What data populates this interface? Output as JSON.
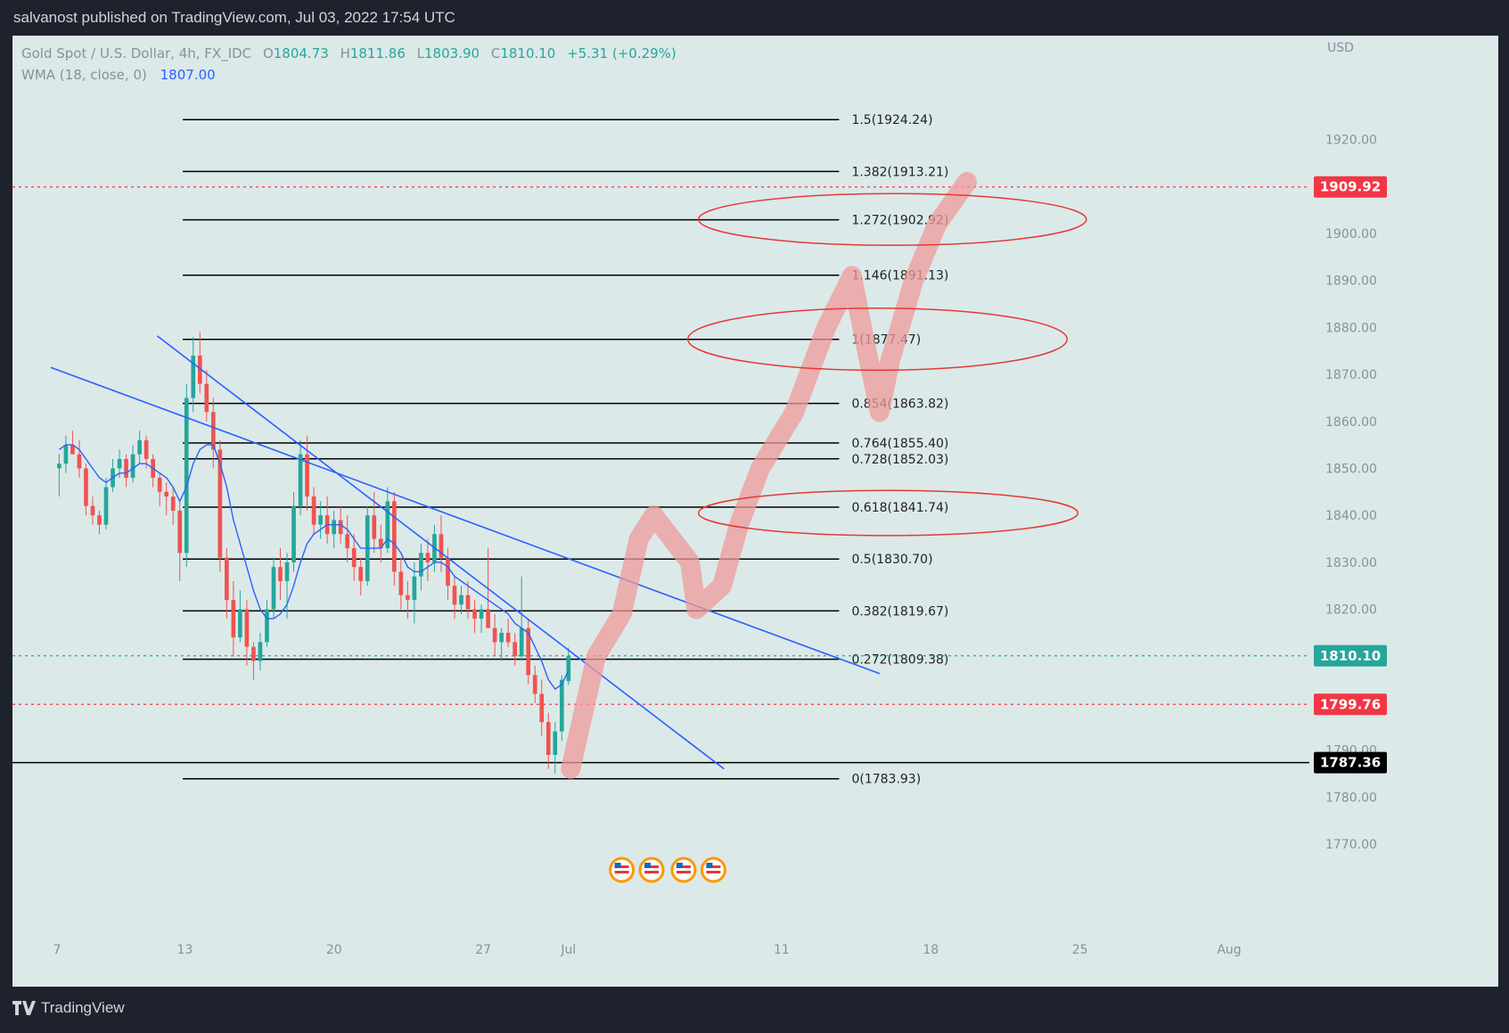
{
  "header": {
    "published": "salvanost published on TradingView.com, Jul 03, 2022 17:54 UTC"
  },
  "legend": {
    "symbol": "Gold Spot / U.S. Dollar, 4h, FX_IDC",
    "open_label": "O",
    "open": "1804.73",
    "high_label": "H",
    "high": "1811.86",
    "low_label": "L",
    "low": "1803.90",
    "close_label": "C",
    "close": "1810.10",
    "change": "+5.31 (+0.29%)",
    "wma_label": "WMA (18, close, 0)",
    "wma_value": "1807.00"
  },
  "footer": {
    "brand": "TradingView"
  },
  "colors": {
    "up": "#26a69a",
    "down": "#ef5350",
    "wma": "#2962ff",
    "trend": "#2962ff",
    "annotation": "#e53935",
    "projection": "#ef9a9a"
  },
  "chart_data": {
    "type": "candlestick",
    "currency": "USD",
    "ylim": [
      1763,
      1937
    ],
    "y_ticks": [
      "1920.00",
      "1910.00",
      "1900.00",
      "1890.00",
      "1880.00",
      "1870.00",
      "1860.00",
      "1850.00",
      "1840.00",
      "1830.00",
      "1820.00",
      "1810.00",
      "1800.00",
      "1790.00",
      "1780.00",
      "1770.00"
    ],
    "x_ticks": [
      {
        "label": "7",
        "day": 7
      },
      {
        "label": "13",
        "day": 13
      },
      {
        "label": "20",
        "day": 20
      },
      {
        "label": "27",
        "day": 27
      },
      {
        "label": "Jul",
        "day": 31
      },
      {
        "label": "11",
        "day": 41
      },
      {
        "label": "18",
        "day": 48
      },
      {
        "label": "25",
        "day": 55
      },
      {
        "label": "Aug",
        "day": 62
      }
    ],
    "fib_levels": [
      {
        "label": "1.5(1924.24)",
        "price": 1924.24
      },
      {
        "label": "1.382(1913.21)",
        "price": 1913.21
      },
      {
        "label": "1.272(1902.92)",
        "price": 1902.92
      },
      {
        "label": "1.146(1891.13)",
        "price": 1891.13
      },
      {
        "label": "1(1877.47)",
        "price": 1877.47
      },
      {
        "label": "0.854(1863.82)",
        "price": 1863.82
      },
      {
        "label": "0.764(1855.40)",
        "price": 1855.4
      },
      {
        "label": "0.728(1852.03)",
        "price": 1852.03
      },
      {
        "label": "0.618(1841.74)",
        "price": 1841.74
      },
      {
        "label": "0.5(1830.70)",
        "price": 1830.7
      },
      {
        "label": "0.382(1819.67)",
        "price": 1819.67
      },
      {
        "label": "0.272(1809.38)",
        "price": 1809.38
      },
      {
        "label": "0(1783.93)",
        "price": 1783.93
      }
    ],
    "price_tags": [
      {
        "label": "1909.92",
        "price": 1909.92,
        "bg": "#f23645",
        "style": "dotted-red"
      },
      {
        "label": "1810.10",
        "price": 1810.1,
        "bg": "#26a69a",
        "style": "dotted-teal"
      },
      {
        "label": "1799.76",
        "price": 1799.76,
        "bg": "#f23645",
        "style": "dotted-red"
      },
      {
        "label": "1787.36",
        "price": 1787.36,
        "bg": "#000000",
        "style": "solid-black"
      }
    ],
    "candles": [
      {
        "o": 1850,
        "h": 1853,
        "l": 1844,
        "c": 1851
      },
      {
        "o": 1851,
        "h": 1857,
        "l": 1849,
        "c": 1855
      },
      {
        "o": 1855,
        "h": 1858,
        "l": 1853,
        "c": 1853
      },
      {
        "o": 1853,
        "h": 1856,
        "l": 1848,
        "c": 1850
      },
      {
        "o": 1850,
        "h": 1851,
        "l": 1840,
        "c": 1842
      },
      {
        "o": 1842,
        "h": 1844,
        "l": 1838,
        "c": 1840
      },
      {
        "o": 1840,
        "h": 1841,
        "l": 1836,
        "c": 1838
      },
      {
        "o": 1838,
        "h": 1848,
        "l": 1837,
        "c": 1846
      },
      {
        "o": 1846,
        "h": 1852,
        "l": 1845,
        "c": 1850
      },
      {
        "o": 1850,
        "h": 1854,
        "l": 1848,
        "c": 1852
      },
      {
        "o": 1852,
        "h": 1853,
        "l": 1846,
        "c": 1848
      },
      {
        "o": 1848,
        "h": 1855,
        "l": 1847,
        "c": 1853
      },
      {
        "o": 1853,
        "h": 1858,
        "l": 1851,
        "c": 1856
      },
      {
        "o": 1856,
        "h": 1857,
        "l": 1850,
        "c": 1852
      },
      {
        "o": 1852,
        "h": 1853,
        "l": 1846,
        "c": 1848
      },
      {
        "o": 1848,
        "h": 1849,
        "l": 1842,
        "c": 1845
      },
      {
        "o": 1845,
        "h": 1847,
        "l": 1840,
        "c": 1844
      },
      {
        "o": 1844,
        "h": 1846,
        "l": 1838,
        "c": 1841
      },
      {
        "o": 1841,
        "h": 1843,
        "l": 1826,
        "c": 1832
      },
      {
        "o": 1832,
        "h": 1868,
        "l": 1829,
        "c": 1865
      },
      {
        "o": 1865,
        "h": 1878,
        "l": 1862,
        "c": 1874
      },
      {
        "o": 1874,
        "h": 1879,
        "l": 1866,
        "c": 1868
      },
      {
        "o": 1868,
        "h": 1871,
        "l": 1860,
        "c": 1862
      },
      {
        "o": 1862,
        "h": 1865,
        "l": 1850,
        "c": 1854
      },
      {
        "o": 1854,
        "h": 1856,
        "l": 1828,
        "c": 1831
      },
      {
        "o": 1831,
        "h": 1833,
        "l": 1818,
        "c": 1822
      },
      {
        "o": 1822,
        "h": 1826,
        "l": 1810,
        "c": 1814
      },
      {
        "o": 1814,
        "h": 1824,
        "l": 1813,
        "c": 1820
      },
      {
        "o": 1820,
        "h": 1822,
        "l": 1808,
        "c": 1812
      },
      {
        "o": 1812,
        "h": 1813,
        "l": 1805,
        "c": 1809
      },
      {
        "o": 1809,
        "h": 1815,
        "l": 1807,
        "c": 1813
      },
      {
        "o": 1813,
        "h": 1822,
        "l": 1812,
        "c": 1820
      },
      {
        "o": 1820,
        "h": 1831,
        "l": 1818,
        "c": 1829
      },
      {
        "o": 1829,
        "h": 1833,
        "l": 1822,
        "c": 1826
      },
      {
        "o": 1826,
        "h": 1832,
        "l": 1818,
        "c": 1830
      },
      {
        "o": 1830,
        "h": 1845,
        "l": 1828,
        "c": 1842
      },
      {
        "o": 1842,
        "h": 1856,
        "l": 1840,
        "c": 1853
      },
      {
        "o": 1853,
        "h": 1857,
        "l": 1841,
        "c": 1844
      },
      {
        "o": 1844,
        "h": 1846,
        "l": 1836,
        "c": 1838
      },
      {
        "o": 1838,
        "h": 1843,
        "l": 1835,
        "c": 1840
      },
      {
        "o": 1840,
        "h": 1844,
        "l": 1834,
        "c": 1836
      },
      {
        "o": 1836,
        "h": 1841,
        "l": 1833,
        "c": 1839
      },
      {
        "o": 1839,
        "h": 1842,
        "l": 1834,
        "c": 1836
      },
      {
        "o": 1836,
        "h": 1840,
        "l": 1830,
        "c": 1833
      },
      {
        "o": 1833,
        "h": 1836,
        "l": 1826,
        "c": 1829
      },
      {
        "o": 1829,
        "h": 1831,
        "l": 1823,
        "c": 1826
      },
      {
        "o": 1826,
        "h": 1842,
        "l": 1825,
        "c": 1840
      },
      {
        "o": 1840,
        "h": 1845,
        "l": 1832,
        "c": 1835
      },
      {
        "o": 1835,
        "h": 1838,
        "l": 1830,
        "c": 1833
      },
      {
        "o": 1833,
        "h": 1846,
        "l": 1832,
        "c": 1843
      },
      {
        "o": 1843,
        "h": 1845,
        "l": 1825,
        "c": 1828
      },
      {
        "o": 1828,
        "h": 1831,
        "l": 1820,
        "c": 1823
      },
      {
        "o": 1823,
        "h": 1826,
        "l": 1818,
        "c": 1822
      },
      {
        "o": 1822,
        "h": 1830,
        "l": 1817,
        "c": 1827
      },
      {
        "o": 1827,
        "h": 1834,
        "l": 1824,
        "c": 1832
      },
      {
        "o": 1832,
        "h": 1835,
        "l": 1826,
        "c": 1830
      },
      {
        "o": 1830,
        "h": 1838,
        "l": 1828,
        "c": 1836
      },
      {
        "o": 1836,
        "h": 1840,
        "l": 1828,
        "c": 1831
      },
      {
        "o": 1831,
        "h": 1833,
        "l": 1822,
        "c": 1825
      },
      {
        "o": 1825,
        "h": 1827,
        "l": 1818,
        "c": 1821
      },
      {
        "o": 1821,
        "h": 1825,
        "l": 1819,
        "c": 1823
      },
      {
        "o": 1823,
        "h": 1826,
        "l": 1818,
        "c": 1820
      },
      {
        "o": 1820,
        "h": 1822,
        "l": 1815,
        "c": 1818
      },
      {
        "o": 1818,
        "h": 1821,
        "l": 1815,
        "c": 1820
      },
      {
        "o": 1820,
        "h": 1833,
        "l": 1816,
        "c": 1816
      },
      {
        "o": 1816,
        "h": 1819,
        "l": 1810,
        "c": 1813
      },
      {
        "o": 1813,
        "h": 1816,
        "l": 1809,
        "c": 1815
      },
      {
        "o": 1815,
        "h": 1818,
        "l": 1812,
        "c": 1813
      },
      {
        "o": 1813,
        "h": 1815,
        "l": 1808,
        "c": 1810
      },
      {
        "o": 1810,
        "h": 1827,
        "l": 1809,
        "c": 1816
      },
      {
        "o": 1816,
        "h": 1818,
        "l": 1804,
        "c": 1806
      },
      {
        "o": 1806,
        "h": 1808,
        "l": 1800,
        "c": 1802
      },
      {
        "o": 1802,
        "h": 1805,
        "l": 1793,
        "c": 1796
      },
      {
        "o": 1796,
        "h": 1798,
        "l": 1786,
        "c": 1789
      },
      {
        "o": 1789,
        "h": 1796,
        "l": 1785,
        "c": 1794
      },
      {
        "o": 1794,
        "h": 1806,
        "l": 1792,
        "c": 1805
      },
      {
        "o": 1804.73,
        "h": 1811.86,
        "l": 1803.9,
        "c": 1810.1
      }
    ],
    "wma_series": [
      1854,
      1855,
      1855,
      1854,
      1852,
      1850,
      1848,
      1847,
      1848,
      1849,
      1849,
      1850,
      1851,
      1851,
      1850,
      1849,
      1848,
      1846,
      1843,
      1846,
      1851,
      1854,
      1855,
      1855,
      1851,
      1846,
      1839,
      1834,
      1829,
      1824,
      1820,
      1818,
      1818,
      1819,
      1821,
      1825,
      1830,
      1834,
      1836,
      1837,
      1838,
      1838,
      1838,
      1837,
      1835,
      1833,
      1833,
      1833,
      1833,
      1835,
      1834,
      1832,
      1829,
      1828,
      1828,
      1829,
      1830,
      1830,
      1829,
      1827,
      1826,
      1825,
      1824,
      1823,
      1822,
      1821,
      1820,
      1819,
      1817,
      1816,
      1815,
      1812,
      1809,
      1805,
      1803,
      1804,
      1807
    ],
    "trendlines": [
      {
        "p1": {
          "day": 6.7,
          "price": 1871.5
        },
        "p2": {
          "day": 45.6,
          "price": 1806.3
        }
      },
      {
        "p1": {
          "day": 11.7,
          "price": 1878.2
        },
        "p2": {
          "day": 38.3,
          "price": 1786.0
        }
      }
    ],
    "projection_path": [
      {
        "day": 31.1,
        "price": 1786
      },
      {
        "day": 32.3,
        "price": 1810
      },
      {
        "day": 33.5,
        "price": 1819
      },
      {
        "day": 34.3,
        "price": 1835
      },
      {
        "day": 35.0,
        "price": 1840
      },
      {
        "day": 36.7,
        "price": 1830
      },
      {
        "day": 37.0,
        "price": 1820
      },
      {
        "day": 38.2,
        "price": 1825
      },
      {
        "day": 39.0,
        "price": 1838
      },
      {
        "day": 40.0,
        "price": 1850
      },
      {
        "day": 41.6,
        "price": 1862
      },
      {
        "day": 43.1,
        "price": 1880
      },
      {
        "day": 44.3,
        "price": 1891
      },
      {
        "day": 45.0,
        "price": 1875
      },
      {
        "day": 45.6,
        "price": 1862
      },
      {
        "day": 46.1,
        "price": 1873
      },
      {
        "day": 47.2,
        "price": 1890
      },
      {
        "day": 48.3,
        "price": 1902
      },
      {
        "day": 49.7,
        "price": 1911
      }
    ],
    "ellipses": [
      {
        "cx_day": 46.2,
        "cy_price": 1903.0,
        "rx_days": 9.1,
        "ry_price": 5.5
      },
      {
        "cx_day": 45.5,
        "cy_price": 1877.5,
        "rx_days": 8.9,
        "ry_price": 6.6
      },
      {
        "cx_day": 46.0,
        "cy_price": 1840.5,
        "rx_days": 8.9,
        "ry_price": 4.8
      }
    ],
    "event_markers": [
      {
        "day": 33.5
      },
      {
        "day": 34.9
      },
      {
        "day": 36.4
      },
      {
        "day": 37.8
      }
    ]
  }
}
